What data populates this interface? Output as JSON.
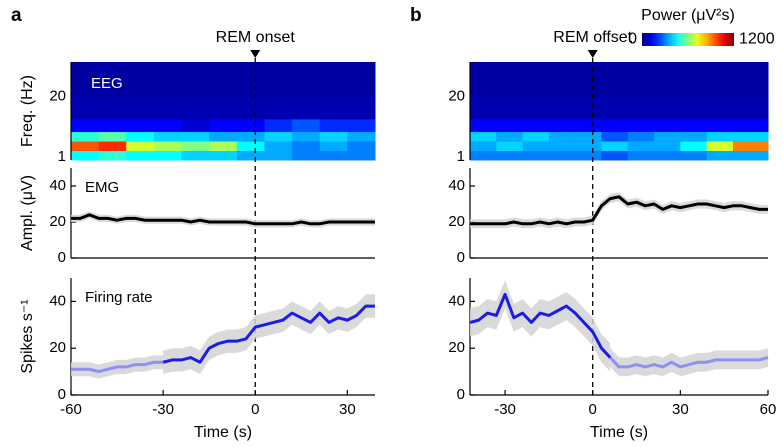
{
  "chart_data": [
    {
      "type": "heatmap",
      "panel_label": "a",
      "annotation": "REM onset",
      "event_x": 0,
      "label": "EEG",
      "ylabel": "Freq. (Hz)",
      "xlim": [
        -60,
        39
      ],
      "ylim": [
        0,
        31
      ],
      "yticks": [
        1,
        20
      ],
      "xbins": [
        -60,
        -51,
        -42,
        -33,
        -24,
        -15,
        -6,
        3,
        12,
        21,
        30,
        39
      ],
      "ybins": [
        0,
        3,
        6,
        9,
        13,
        20,
        31
      ],
      "z": [
        [
          450,
          500,
          450,
          450,
          400,
          400,
          350,
          350,
          300,
          300,
          300
        ],
        [
          950,
          1000,
          700,
          650,
          600,
          650,
          450,
          350,
          300,
          350,
          300
        ],
        [
          500,
          550,
          450,
          400,
          400,
          350,
          350,
          400,
          350,
          400,
          350
        ],
        [
          150,
          150,
          150,
          150,
          100,
          150,
          150,
          200,
          250,
          200,
          200
        ],
        [
          60,
          60,
          60,
          60,
          60,
          60,
          60,
          60,
          60,
          60,
          60
        ],
        [
          40,
          40,
          40,
          40,
          40,
          40,
          40,
          40,
          40,
          40,
          40
        ]
      ]
    },
    {
      "type": "line",
      "label": "EMG",
      "ylabel": "Ampl. (μV)",
      "xlim": [
        -60,
        39
      ],
      "ylim": [
        0,
        50
      ],
      "yticks": [
        0,
        20,
        40
      ],
      "series": [
        {
          "color": "#000000",
          "error": 2,
          "x": [
            -60,
            -57,
            -54,
            -51,
            -48,
            -45,
            -42,
            -39,
            -36,
            -33,
            -30,
            -27,
            -24,
            -21,
            -18,
            -15,
            -12,
            -9,
            -6,
            -3,
            0,
            3,
            6,
            9,
            12,
            15,
            18,
            21,
            24,
            27,
            30,
            33,
            36,
            39
          ],
          "values": [
            22,
            22,
            24,
            22,
            22,
            21,
            22,
            22,
            21,
            21,
            21,
            21,
            21,
            20,
            21,
            20,
            20,
            20,
            20,
            20,
            19,
            19,
            19,
            19,
            19,
            20,
            19,
            19,
            20,
            20,
            20,
            20,
            20,
            20
          ]
        }
      ]
    },
    {
      "type": "line",
      "label": "Firing rate",
      "ylabel": "Spikes s⁻¹",
      "xlabel": "Time (s)",
      "xlim": [
        -60,
        39
      ],
      "ylim": [
        0,
        50
      ],
      "yticks": [
        0,
        20,
        40
      ],
      "xticks": [
        -60,
        -30,
        0,
        30
      ],
      "series": [
        {
          "color": "#8f8ff5",
          "error": 3,
          "x": [
            -60,
            -57,
            -54,
            -51,
            -48,
            -45,
            -42,
            -39,
            -36,
            -33,
            -30
          ],
          "values": [
            11,
            11,
            11,
            10,
            11,
            12,
            12,
            13,
            13,
            14,
            14
          ]
        },
        {
          "color": "#1c1ce8",
          "error": 5,
          "x": [
            -30,
            -27,
            -24,
            -21,
            -18,
            -15,
            -12,
            -9,
            -6,
            -3,
            0,
            3,
            6,
            9,
            12,
            15,
            18,
            21,
            24,
            27,
            30,
            33,
            36,
            39
          ],
          "values": [
            14,
            15,
            15,
            16,
            14,
            20,
            22,
            23,
            23,
            24,
            29,
            30,
            31,
            32,
            35,
            33,
            31,
            35,
            31,
            33,
            32,
            34,
            38,
            38
          ]
        }
      ]
    },
    {
      "type": "heatmap",
      "panel_label": "b",
      "annotation": "REM offset",
      "event_x": 0,
      "xlim": [
        -42,
        60
      ],
      "ylim": [
        0,
        31
      ],
      "yticks": [
        1,
        20
      ],
      "xbins": [
        -42,
        -33,
        -24,
        -15,
        -6,
        3,
        12,
        21,
        30,
        39,
        48,
        60
      ],
      "ybins": [
        0,
        3,
        6,
        9,
        13,
        20,
        31
      ],
      "z": [
        [
          300,
          300,
          300,
          300,
          300,
          250,
          300,
          300,
          300,
          350,
          350
        ],
        [
          350,
          400,
          350,
          350,
          350,
          400,
          350,
          350,
          450,
          700,
          900
        ],
        [
          400,
          350,
          400,
          350,
          350,
          250,
          300,
          350,
          350,
          400,
          400
        ],
        [
          150,
          150,
          150,
          150,
          150,
          150,
          150,
          150,
          150,
          150,
          150
        ],
        [
          60,
          60,
          60,
          60,
          60,
          60,
          60,
          60,
          60,
          60,
          60
        ],
        [
          40,
          40,
          40,
          40,
          40,
          40,
          40,
          40,
          40,
          40,
          40
        ]
      ],
      "colorbar": {
        "label": "Power (μV²s)",
        "lim": [
          0,
          1200
        ],
        "ticks": [
          0,
          1200
        ]
      }
    },
    {
      "type": "line",
      "xlim": [
        -42,
        60
      ],
      "ylim": [
        0,
        50
      ],
      "yticks": [
        0,
        20,
        40
      ],
      "series": [
        {
          "color": "#000000",
          "error": 2.5,
          "x": [
            -42,
            -39,
            -36,
            -33,
            -30,
            -27,
            -24,
            -21,
            -18,
            -15,
            -12,
            -9,
            -6,
            -3,
            0,
            3,
            6,
            9,
            12,
            15,
            18,
            21,
            24,
            27,
            30,
            33,
            36,
            39,
            42,
            45,
            48,
            51,
            54,
            57,
            60
          ],
          "values": [
            19,
            19,
            19,
            19,
            19,
            20,
            19,
            19,
            20,
            19,
            20,
            19,
            20,
            20,
            21,
            29,
            33,
            34,
            30,
            31,
            29,
            30,
            27,
            29,
            28,
            29,
            30,
            30,
            29,
            28,
            29,
            29,
            28,
            27,
            27
          ]
        }
      ]
    },
    {
      "type": "line",
      "xlabel": "Time (s)",
      "xlim": [
        -42,
        60
      ],
      "ylim": [
        0,
        50
      ],
      "yticks": [
        0,
        20,
        40
      ],
      "xticks": [
        -30,
        0,
        30,
        60
      ],
      "series": [
        {
          "color": "#1c1ce8",
          "error": 6,
          "x": [
            -42,
            -39,
            -36,
            -33,
            -30,
            -27,
            -24,
            -21,
            -18,
            -15,
            -12,
            -9,
            -6,
            -3,
            0,
            3,
            6
          ],
          "values": [
            31,
            32,
            35,
            34,
            43,
            33,
            35,
            31,
            35,
            34,
            36,
            38,
            35,
            31,
            27,
            20,
            16
          ]
        },
        {
          "color": "#8f8ff5",
          "error": 4,
          "x": [
            6,
            9,
            12,
            15,
            18,
            21,
            24,
            27,
            30,
            33,
            36,
            39,
            42,
            45,
            48,
            51,
            54,
            57,
            60
          ],
          "values": [
            16,
            12,
            12,
            13,
            12,
            13,
            12,
            14,
            12,
            13,
            14,
            14,
            15,
            15,
            15,
            15,
            15,
            15,
            16
          ]
        }
      ]
    }
  ]
}
